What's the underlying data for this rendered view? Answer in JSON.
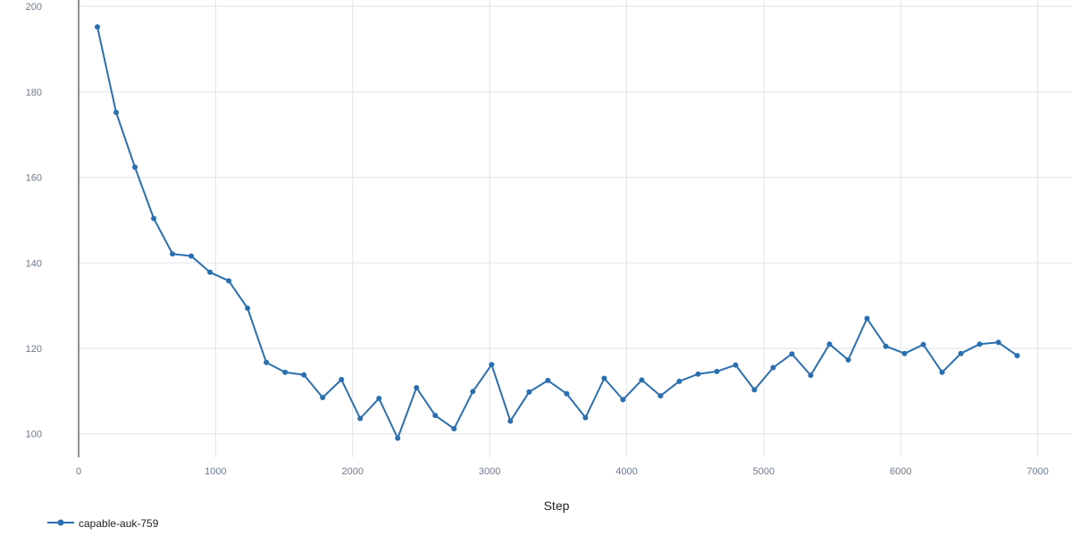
{
  "chart_data": {
    "type": "line",
    "title": "",
    "xlabel": "Step",
    "ylabel": "",
    "xlim": [
      0,
      7250
    ],
    "ylim": [
      94.5,
      201.5
    ],
    "x_ticks": [
      0,
      1000,
      2000,
      3000,
      4000,
      5000,
      6000,
      7000
    ],
    "y_ticks": [
      100,
      120,
      140,
      160,
      180,
      200
    ],
    "grid": true,
    "legend_position": "bottom-left",
    "series": [
      {
        "name": "capable-auk-759",
        "color": "#2a6fb0",
        "markers": true,
        "x": [
          137,
          274,
          411,
          548,
          685,
          822,
          959,
          1096,
          1233,
          1370,
          1507,
          1644,
          1781,
          1918,
          2055,
          2192,
          2329,
          2466,
          2603,
          2740,
          2877,
          3014,
          3151,
          3288,
          3425,
          3562,
          3699,
          3836,
          3973,
          4110,
          4247,
          4384,
          4521,
          4658,
          4795,
          4932,
          5069,
          5206,
          5343,
          5480,
          5617,
          5754,
          5891,
          6028,
          6165,
          6302,
          6439,
          6576,
          6713,
          6850
        ],
        "y": [
          195.2,
          175.2,
          162.4,
          150.4,
          142.1,
          141.6,
          137.8,
          135.8,
          129.4,
          116.7,
          114.4,
          113.8,
          108.5,
          112.7,
          103.6,
          108.3,
          99.0,
          110.8,
          104.3,
          101.2,
          109.9,
          116.2,
          103.0,
          109.8,
          112.5,
          109.4,
          103.8,
          113.0,
          108.0,
          112.6,
          108.9,
          112.3,
          114.0,
          114.6,
          116.1,
          110.3,
          115.5,
          118.7,
          113.7,
          121.0,
          117.3,
          127.0,
          120.5,
          118.8,
          120.9,
          114.4,
          118.8,
          121.0,
          121.4,
          118.3
        ]
      }
    ]
  }
}
